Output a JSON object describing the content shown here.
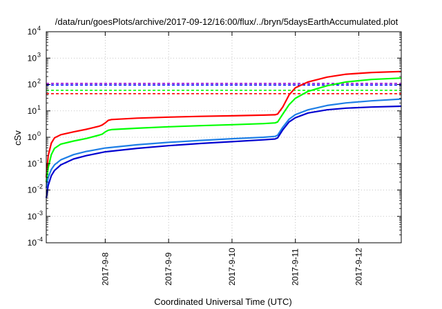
{
  "chart_data": {
    "type": "line",
    "title": "/data/run/goesPlots/archive/2017-09-12/16:00/flux/../bryn/5daysEarthAccumulated.plot",
    "xlabel": "Coordinated Universal Time (UTC)",
    "ylabel": "cSv",
    "y_scale": "log",
    "ylim": [
      0.0001,
      10000
    ],
    "y_ticks": [
      {
        "value": 0.0001,
        "base": "10",
        "exp": "-4"
      },
      {
        "value": 0.001,
        "base": "10",
        "exp": "-3"
      },
      {
        "value": 0.01,
        "base": "10",
        "exp": "-2"
      },
      {
        "value": 0.1,
        "base": "10",
        "exp": "-1"
      },
      {
        "value": 1,
        "base": "10",
        "exp": "0"
      },
      {
        "value": 10,
        "base": "10",
        "exp": "1"
      },
      {
        "value": 100,
        "base": "10",
        "exp": "2"
      },
      {
        "value": 1000,
        "base": "10",
        "exp": "3"
      },
      {
        "value": 10000,
        "base": "10",
        "exp": "4"
      }
    ],
    "x_unit": "days since 2017-09-07 00:00 UTC",
    "xlim": [
      0.07,
      5.67
    ],
    "x_ticks": [
      {
        "value": 1,
        "label": "2017-9-8"
      },
      {
        "value": 2,
        "label": "2017-9-9"
      },
      {
        "value": 3,
        "label": "2017-9-10"
      },
      {
        "value": 4,
        "label": "2017-9-11"
      },
      {
        "value": 5,
        "label": "2017-9-12"
      }
    ],
    "grid": true,
    "grid_style": "dotted",
    "thresholds": [
      {
        "color": "#9400d3",
        "value": 110
      },
      {
        "color": "#0000ff",
        "value": 95
      },
      {
        "color": "#00ff00",
        "value": 60
      },
      {
        "color": "#ff0000",
        "value": 45
      }
    ],
    "series": [
      {
        "color": "#ff0000",
        "points": [
          [
            0.07,
            0.03
          ],
          [
            0.1,
            0.2
          ],
          [
            0.15,
            0.6
          ],
          [
            0.2,
            0.95
          ],
          [
            0.3,
            1.25
          ],
          [
            0.5,
            1.6
          ],
          [
            0.7,
            2.0
          ],
          [
            0.9,
            2.6
          ],
          [
            0.95,
            2.9
          ],
          [
            1.0,
            3.5
          ],
          [
            1.05,
            4.4
          ],
          [
            1.1,
            4.7
          ],
          [
            1.5,
            5.3
          ],
          [
            2.0,
            5.8
          ],
          [
            2.5,
            6.2
          ],
          [
            3.0,
            6.5
          ],
          [
            3.5,
            6.9
          ],
          [
            3.68,
            7.1
          ],
          [
            3.72,
            7.6
          ],
          [
            3.8,
            14
          ],
          [
            3.9,
            40
          ],
          [
            4.0,
            75
          ],
          [
            4.2,
            125
          ],
          [
            4.5,
            190
          ],
          [
            4.8,
            245
          ],
          [
            5.2,
            285
          ],
          [
            5.67,
            310
          ]
        ]
      },
      {
        "color": "#00ff00",
        "points": [
          [
            0.07,
            0.02
          ],
          [
            0.1,
            0.07
          ],
          [
            0.15,
            0.22
          ],
          [
            0.2,
            0.38
          ],
          [
            0.3,
            0.55
          ],
          [
            0.5,
            0.72
          ],
          [
            0.7,
            0.9
          ],
          [
            0.9,
            1.2
          ],
          [
            0.95,
            1.3
          ],
          [
            1.0,
            1.6
          ],
          [
            1.05,
            1.85
          ],
          [
            1.1,
            1.95
          ],
          [
            1.5,
            2.2
          ],
          [
            2.0,
            2.5
          ],
          [
            2.5,
            2.75
          ],
          [
            3.0,
            3.0
          ],
          [
            3.5,
            3.3
          ],
          [
            3.68,
            3.5
          ],
          [
            3.72,
            3.8
          ],
          [
            3.8,
            7.5
          ],
          [
            3.9,
            17
          ],
          [
            4.0,
            30
          ],
          [
            4.2,
            55
          ],
          [
            4.5,
            90
          ],
          [
            4.8,
            125
          ],
          [
            5.2,
            155
          ],
          [
            5.67,
            175
          ]
        ]
      },
      {
        "color": "#1e7fe6",
        "points": [
          [
            0.07,
            0.012
          ],
          [
            0.1,
            0.03
          ],
          [
            0.15,
            0.06
          ],
          [
            0.2,
            0.09
          ],
          [
            0.3,
            0.14
          ],
          [
            0.5,
            0.22
          ],
          [
            0.7,
            0.29
          ],
          [
            1.0,
            0.39
          ],
          [
            1.5,
            0.52
          ],
          [
            2.0,
            0.64
          ],
          [
            2.5,
            0.76
          ],
          [
            3.0,
            0.88
          ],
          [
            3.5,
            1.0
          ],
          [
            3.68,
            1.08
          ],
          [
            3.72,
            1.2
          ],
          [
            3.8,
            2.4
          ],
          [
            3.9,
            4.8
          ],
          [
            4.0,
            7.2
          ],
          [
            4.2,
            11
          ],
          [
            4.5,
            16
          ],
          [
            4.8,
            20
          ],
          [
            5.2,
            24
          ],
          [
            5.67,
            28
          ]
        ]
      },
      {
        "color": "#0000d0",
        "points": [
          [
            0.07,
            0.005
          ],
          [
            0.1,
            0.015
          ],
          [
            0.15,
            0.035
          ],
          [
            0.2,
            0.055
          ],
          [
            0.3,
            0.09
          ],
          [
            0.5,
            0.15
          ],
          [
            0.7,
            0.2
          ],
          [
            1.0,
            0.28
          ],
          [
            1.5,
            0.38
          ],
          [
            2.0,
            0.48
          ],
          [
            2.5,
            0.58
          ],
          [
            3.0,
            0.68
          ],
          [
            3.5,
            0.8
          ],
          [
            3.68,
            0.86
          ],
          [
            3.72,
            0.95
          ],
          [
            3.8,
            1.9
          ],
          [
            3.9,
            3.8
          ],
          [
            4.0,
            5.5
          ],
          [
            4.2,
            8.3
          ],
          [
            4.5,
            11
          ],
          [
            4.8,
            12.7
          ],
          [
            5.2,
            14
          ],
          [
            5.67,
            15
          ]
        ]
      }
    ]
  }
}
